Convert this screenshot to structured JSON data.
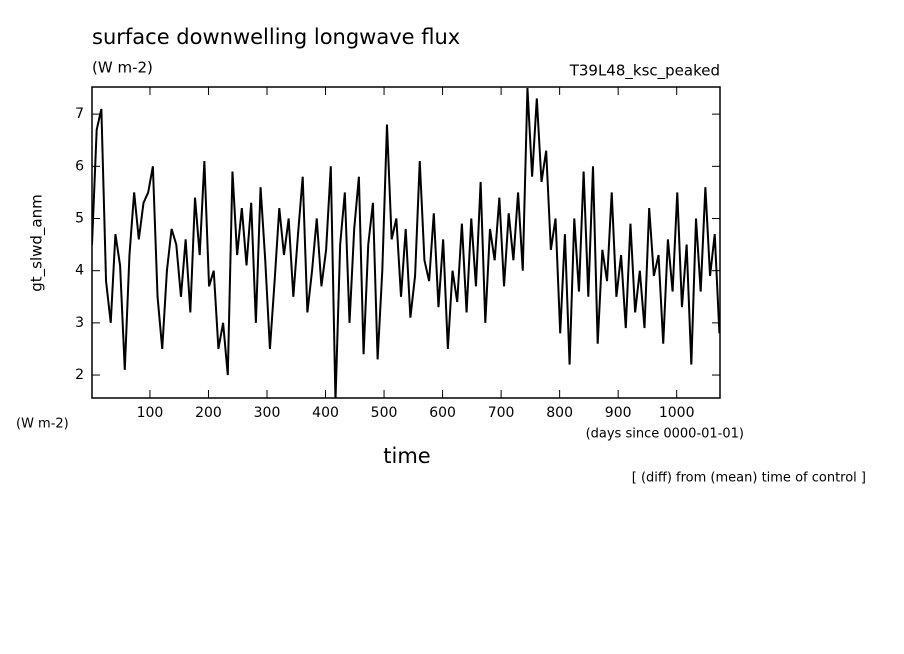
{
  "chart_data": {
    "type": "line",
    "title": "surface downwelling longwave flux",
    "subtitle": "(W m-2)",
    "run_label": "T39L48_ksc_peaked",
    "y_label": "gt_slwd_anm",
    "y_units": "(W m-2)",
    "x_label": "time",
    "x_units": "(days since 0000-01-01)",
    "annotation": "[ (diff) from (mean) time of control ]",
    "xlim": [
      1,
      1074
    ],
    "ylim": [
      1.56,
      7.52
    ],
    "xticks": [
      100,
      200,
      300,
      400,
      500,
      600,
      700,
      800,
      900,
      1000
    ],
    "yticks": [
      2,
      3,
      4,
      5,
      6,
      7
    ],
    "x": [
      1,
      9,
      17,
      25,
      33,
      41,
      49,
      57,
      65,
      73,
      81,
      89,
      97,
      105,
      113,
      121,
      129,
      137,
      145,
      153,
      161,
      169,
      177,
      185,
      193,
      201,
      209,
      217,
      225,
      233,
      241,
      249,
      257,
      265,
      273,
      281,
      289,
      297,
      305,
      313,
      321,
      329,
      337,
      345,
      353,
      361,
      369,
      377,
      385,
      393,
      401,
      409,
      417,
      425,
      433,
      441,
      449,
      457,
      465,
      473,
      481,
      489,
      497,
      505,
      513,
      521,
      529,
      537,
      545,
      553,
      561,
      569,
      577,
      585,
      593,
      601,
      609,
      617,
      625,
      633,
      641,
      649,
      657,
      665,
      673,
      681,
      689,
      697,
      705,
      713,
      721,
      729,
      737,
      745,
      753,
      761,
      769,
      777,
      785,
      793,
      801,
      809,
      817,
      825,
      833,
      841,
      849,
      857,
      865,
      873,
      881,
      889,
      897,
      905,
      913,
      921,
      929,
      937,
      945,
      953,
      961,
      969,
      977,
      985,
      993,
      1001,
      1009,
      1017,
      1025,
      1033,
      1041,
      1049,
      1057,
      1065,
      1073
    ],
    "series": [
      {
        "color": "#000000",
        "values": [
          4.5,
          6.7,
          7.1,
          3.8,
          3.0,
          4.7,
          4.1,
          2.1,
          4.3,
          5.5,
          4.6,
          5.3,
          5.5,
          6.0,
          3.5,
          2.5,
          4.0,
          4.8,
          4.5,
          3.5,
          4.6,
          3.2,
          5.4,
          4.3,
          6.1,
          3.7,
          4.0,
          2.5,
          3.0,
          2.0,
          5.9,
          4.3,
          5.2,
          4.1,
          5.3,
          3.0,
          5.6,
          4.2,
          2.5,
          3.8,
          5.2,
          4.3,
          5.0,
          3.5,
          4.7,
          5.8,
          3.2,
          4.0,
          5.0,
          3.7,
          4.4,
          6.0,
          1.5,
          4.5,
          5.5,
          3.0,
          4.8,
          5.8,
          2.4,
          4.5,
          5.3,
          2.3,
          4.0,
          6.8,
          4.6,
          5.0,
          3.5,
          4.8,
          3.1,
          3.9,
          6.1,
          4.2,
          3.8,
          5.1,
          3.3,
          4.6,
          2.5,
          4.0,
          3.4,
          4.9,
          3.2,
          5.0,
          3.7,
          5.7,
          3.0,
          4.8,
          4.2,
          5.4,
          3.7,
          5.1,
          4.2,
          5.5,
          4.0,
          7.5,
          5.8,
          7.3,
          5.7,
          6.3,
          4.4,
          5.0,
          2.8,
          4.7,
          2.2,
          5.0,
          3.6,
          5.9,
          3.5,
          6.0,
          2.6,
          4.4,
          3.8,
          5.5,
          3.5,
          4.3,
          2.9,
          4.9,
          3.2,
          4.0,
          2.9,
          5.2,
          3.9,
          4.3,
          2.6,
          4.6,
          3.6,
          5.5,
          3.3,
          4.5,
          2.2,
          5.0,
          3.6,
          5.6,
          3.9,
          4.7,
          2.8
        ]
      }
    ]
  }
}
